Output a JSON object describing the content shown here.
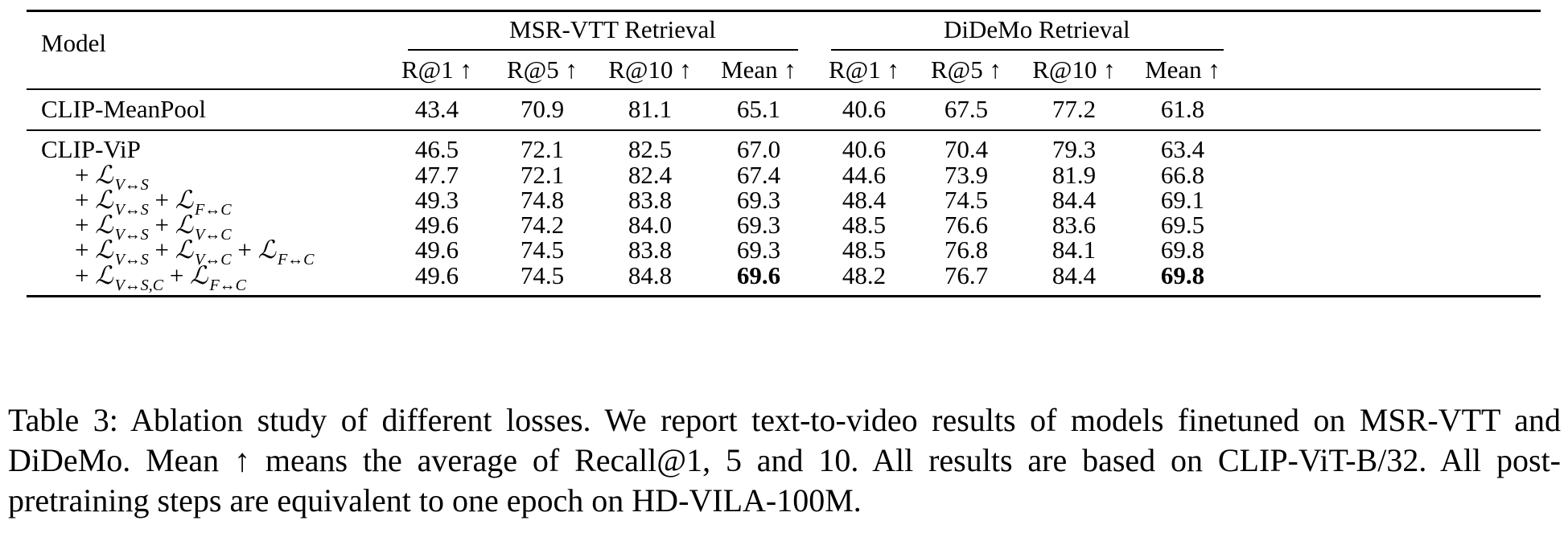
{
  "table": {
    "model_header": "Model",
    "group_msr": "MSR-VTT Retrieval",
    "group_didemo": "DiDeMo Retrieval",
    "columns": [
      "R@1 ↑",
      "R@5 ↑",
      "R@10 ↑",
      "Mean ↑",
      "R@1 ↑",
      "R@5 ↑",
      "R@10 ↑",
      "Mean ↑"
    ],
    "baseline": {
      "model": "CLIP-MeanPool",
      "values": [
        "43.4",
        "70.9",
        "81.1",
        "65.1",
        "40.6",
        "67.5",
        "77.2",
        "61.8"
      ]
    },
    "vip": {
      "model": "CLIP-ViP",
      "values": [
        "46.5",
        "72.1",
        "82.5",
        "67.0",
        "40.6",
        "70.4",
        "79.3",
        "63.4"
      ]
    },
    "ablations": [
      {
        "terms": [
          [
            "V↔S"
          ]
        ],
        "values": [
          "47.7",
          "72.1",
          "82.4",
          "67.4",
          "44.6",
          "73.9",
          "81.9",
          "66.8"
        ]
      },
      {
        "terms": [
          [
            "V↔S"
          ],
          [
            "F↔C"
          ]
        ],
        "values": [
          "49.3",
          "74.8",
          "83.8",
          "69.3",
          "48.4",
          "74.5",
          "84.4",
          "69.1"
        ]
      },
      {
        "terms": [
          [
            "V↔S"
          ],
          [
            "V↔C"
          ]
        ],
        "values": [
          "49.6",
          "74.2",
          "84.0",
          "69.3",
          "48.5",
          "76.6",
          "83.6",
          "69.5"
        ]
      },
      {
        "terms": [
          [
            "V↔S"
          ],
          [
            "V↔C"
          ],
          [
            "F↔C"
          ]
        ],
        "values": [
          "49.6",
          "74.5",
          "83.8",
          "69.3",
          "48.5",
          "76.8",
          "84.1",
          "69.8"
        ]
      },
      {
        "terms": [
          [
            "V↔S,C"
          ],
          [
            "F↔C"
          ]
        ],
        "values": [
          "49.6",
          "74.5",
          "84.8",
          "69.6",
          "48.2",
          "76.7",
          "84.4",
          "69.8"
        ],
        "bold_indices": [
          3,
          7
        ]
      }
    ],
    "loss_symbol": "ℒ",
    "plus": "+"
  },
  "caption": "Table 3: Ablation study of different losses. We report text-to-video results of models finetuned on MSR-VTT and DiDeMo. Mean ↑ means the average of Recall@1, 5 and 10. All results are based on CLIP-ViT-B/32. All post-pretraining steps are equivalent to one epoch on HD-VILA-100M."
}
